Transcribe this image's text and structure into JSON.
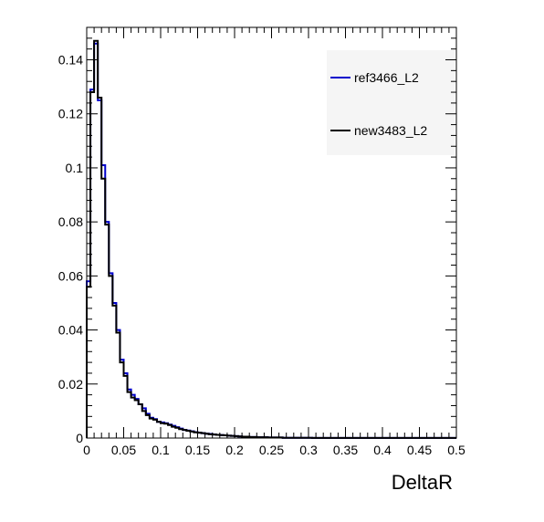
{
  "chart_data": {
    "type": "histogram",
    "title": "",
    "xlabel": "DeltaR",
    "ylabel": "",
    "xlim": [
      0,
      0.5
    ],
    "ylim": [
      0,
      0.152
    ],
    "bin_width": 0.005,
    "grid": false,
    "legend_position": "top-right",
    "x_ticks": [
      {
        "value": 0,
        "label": "0"
      },
      {
        "value": 0.05,
        "label": "0.05"
      },
      {
        "value": 0.1,
        "label": "0.1"
      },
      {
        "value": 0.15,
        "label": "0.15"
      },
      {
        "value": 0.2,
        "label": "0.2"
      },
      {
        "value": 0.25,
        "label": "0.25"
      },
      {
        "value": 0.3,
        "label": "0.3"
      },
      {
        "value": 0.35,
        "label": "0.35"
      },
      {
        "value": 0.4,
        "label": "0.4"
      },
      {
        "value": 0.45,
        "label": "0.45"
      },
      {
        "value": 0.5,
        "label": "0.5"
      }
    ],
    "y_ticks": [
      {
        "value": 0,
        "label": "0"
      },
      {
        "value": 0.02,
        "label": "0.02"
      },
      {
        "value": 0.04,
        "label": "0.04"
      },
      {
        "value": 0.06,
        "label": "0.06"
      },
      {
        "value": 0.08,
        "label": "0.08"
      },
      {
        "value": 0.1,
        "label": "0.1"
      },
      {
        "value": 0.12,
        "label": "0.12"
      },
      {
        "value": 0.14,
        "label": "0.14"
      }
    ],
    "series": [
      {
        "name": "ref3466_L2",
        "color": "#0000cc",
        "values": [
          0.058,
          0.129,
          0.146,
          0.125,
          0.101,
          0.08,
          0.061,
          0.05,
          0.04,
          0.029,
          0.024,
          0.018,
          0.016,
          0.0145,
          0.0125,
          0.011,
          0.009,
          0.0075,
          0.007,
          0.006,
          0.0058,
          0.0055,
          0.005,
          0.0045,
          0.004,
          0.0035,
          0.003,
          0.0028,
          0.0025,
          0.0022,
          0.002,
          0.0018,
          0.0016,
          0.0015,
          0.0013,
          0.0012,
          0.0011,
          0.001,
          0.0009,
          0.0008,
          0.0007,
          0.0006,
          0.0005,
          0.0005,
          0.0004,
          0.0004,
          0.0003,
          0.0003,
          0.0003,
          0.0002,
          0.0002,
          0.0002,
          0.0002,
          0.0001,
          0.0001,
          0.0001,
          0.0001,
          0.0001,
          0.0001,
          0.0001,
          0.0001,
          5e-05,
          5e-05,
          5e-05,
          5e-05,
          5e-05,
          5e-05,
          5e-05,
          5e-05,
          5e-05,
          5e-05,
          5e-05,
          5e-05,
          5e-05,
          5e-05,
          5e-05,
          5e-05,
          5e-05,
          5e-05,
          5e-05,
          5e-05,
          5e-05,
          5e-05,
          5e-05,
          5e-05,
          5e-05,
          5e-05,
          5e-05,
          5e-05,
          5e-05,
          5e-05,
          5e-05,
          5e-05,
          5e-05,
          5e-05,
          5e-05,
          5e-05,
          5e-05,
          5e-05,
          5e-05
        ]
      },
      {
        "name": "new3483_L2",
        "color": "#000000",
        "values": [
          0.056,
          0.128,
          0.147,
          0.126,
          0.096,
          0.079,
          0.06,
          0.049,
          0.039,
          0.028,
          0.023,
          0.017,
          0.015,
          0.014,
          0.0125,
          0.01,
          0.0085,
          0.0072,
          0.0068,
          0.006,
          0.0055,
          0.0053,
          0.0048,
          0.0042,
          0.0038,
          0.0033,
          0.003,
          0.0027,
          0.0024,
          0.0021,
          0.002,
          0.0018,
          0.0016,
          0.0014,
          0.0013,
          0.0012,
          0.0011,
          0.001,
          0.0009,
          0.0008,
          0.0007,
          0.0006,
          0.0005,
          0.0005,
          0.0004,
          0.0004,
          0.0003,
          0.0003,
          0.0003,
          0.0002,
          0.0002,
          0.0002,
          0.0002,
          0.0001,
          0.0001,
          0.0001,
          0.0001,
          0.0001,
          0.0001,
          0.0001,
          0.0001,
          5e-05,
          5e-05,
          5e-05,
          5e-05,
          5e-05,
          5e-05,
          5e-05,
          5e-05,
          5e-05,
          5e-05,
          5e-05,
          5e-05,
          5e-05,
          5e-05,
          5e-05,
          5e-05,
          5e-05,
          5e-05,
          5e-05,
          5e-05,
          5e-05,
          5e-05,
          5e-05,
          5e-05,
          5e-05,
          5e-05,
          5e-05,
          5e-05,
          5e-05,
          5e-05,
          5e-05,
          5e-05,
          5e-05,
          5e-05,
          5e-05,
          5e-05,
          5e-05,
          5e-05,
          5e-05
        ]
      }
    ]
  }
}
